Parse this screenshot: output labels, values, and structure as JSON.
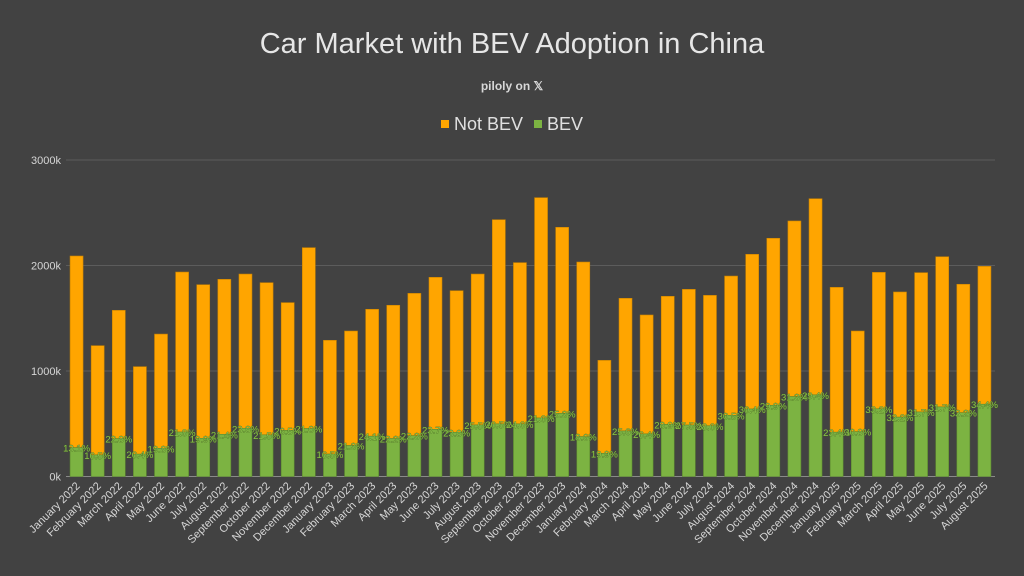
{
  "chart_data": {
    "type": "bar",
    "stacked": true,
    "title": "Car Market with BEV Adoption in China",
    "subtitle": "piloly on 𝕏",
    "xlabel": "",
    "ylabel": "",
    "ylim": [
      0,
      3000
    ],
    "y_ticks": [
      "0k",
      "1000k",
      "2000k",
      "3000k"
    ],
    "y_tick_values": [
      0,
      1000,
      2000,
      3000
    ],
    "grid": true,
    "legend_position": "top",
    "categories": [
      "January 2022",
      "February 2022",
      "March 2022",
      "April 2022",
      "May 2022",
      "June 2022",
      "July 2022",
      "August 2022",
      "September 2022",
      "October 2022",
      "November 2022",
      "December 2022",
      "January 2023",
      "February 2023",
      "March 2023",
      "April 2023",
      "May 2023",
      "June 2023",
      "July 2023",
      "August 2023",
      "September 2023",
      "October 2023",
      "November 2023",
      "December 2023",
      "January 2024",
      "February 2024",
      "March 2024",
      "April 2024",
      "May 2024",
      "June 2024",
      "July 2024",
      "August 2024",
      "September 2024",
      "October 2024",
      "November 2024",
      "December 2024",
      "January 2025",
      "February 2025",
      "March 2025",
      "April 2025",
      "May 2025",
      "June 2025",
      "July 2025",
      "August 2025"
    ],
    "series": [
      {
        "name": "BEV",
        "color": "#7cb342",
        "values": [
          274,
          205,
          359,
          212,
          267,
          422,
          362,
          400,
          457,
          395,
          437,
          455,
          213,
          294,
          382,
          360,
          387,
          447,
          419,
          489,
          499,
          499,
          555,
          598,
          378,
          219,
          432,
          404,
          494,
          488,
          481,
          580,
          640,
          675,
          758,
          774,
          420,
          425,
          642,
          563,
          612,
          660,
          605,
          685
        ]
      },
      {
        "name": "Not BEV",
        "color": "#ffa500",
        "values": [
          1816,
          1035,
          1216,
          829,
          1083,
          1516,
          1456,
          1469,
          1462,
          1442,
          1211,
          1714,
          1078,
          1085,
          1203,
          1263,
          1349,
          1441,
          1342,
          1430,
          1935,
          1528,
          2088,
          1764,
          1655,
          882,
          1257,
          1127,
          1214,
          1286,
          1236,
          1320,
          1466,
          1583,
          1664,
          1859,
          1373,
          954,
          1293,
          1186,
          1320,
          1423,
          1217,
          1307
        ]
      }
    ],
    "legend": [
      "Not BEV",
      "BEV"
    ],
    "bev_share_labels": [
      "13.1%",
      "16.5%",
      "22.8%",
      "20.4%",
      "19.8%",
      "21.8%",
      "19.9%",
      "21.4%",
      "23.8%",
      "21.5%",
      "26.5%",
      "21.0%",
      "16.5%",
      "21.3%",
      "24.1%",
      "22.2%",
      "22.3%",
      "23.7%",
      "23.8%",
      "25.5%",
      "20.5%",
      "24.6%",
      "21.0%",
      "25.3%",
      "18.6%",
      "19.9%",
      "25.6%",
      "26.4%",
      "28.9%",
      "27.5%",
      "28.0%",
      "30.5%",
      "30.4%",
      "29.9%",
      "31.3%",
      "29.4%",
      "23.4%",
      "30.8%",
      "33.2%",
      "32.2%",
      "31.7%",
      "31.7%",
      "33.2%",
      "34.4%"
    ]
  }
}
